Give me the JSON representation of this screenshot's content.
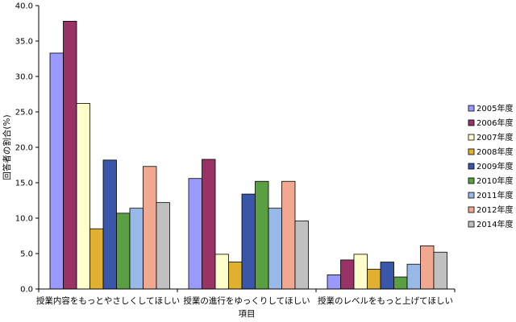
{
  "chart_data": {
    "type": "bar",
    "title": "",
    "xlabel": "項目",
    "ylabel": "回答者の割合(%)",
    "ylim": [
      0,
      40
    ],
    "ytick_step": 5,
    "y_tick_labels": [
      "0.0",
      "5.0",
      "10.0",
      "15.0",
      "20.0",
      "25.0",
      "30.0",
      "35.0",
      "40.0"
    ],
    "grid": false,
    "legend_position": "right",
    "categories": [
      "授業内容をもっとやさしくしてほしい",
      "授業の進行をゆっくりしてほしい",
      "授業のレベルをもっと上げてほしい"
    ],
    "series": [
      {
        "name": "2005年度",
        "color": "#9999ff",
        "values": [
          33.3,
          15.6,
          2.0
        ]
      },
      {
        "name": "2006年度",
        "color": "#993366",
        "values": [
          37.8,
          18.3,
          4.1
        ]
      },
      {
        "name": "2007年度",
        "color": "#ffffcc",
        "values": [
          26.2,
          4.9,
          4.9
        ]
      },
      {
        "name": "2008年度",
        "color": "#e0b030",
        "values": [
          8.5,
          3.8,
          2.8
        ]
      },
      {
        "name": "2009年度",
        "color": "#3a56a8",
        "values": [
          18.2,
          13.4,
          3.8
        ]
      },
      {
        "name": "2010年度",
        "color": "#5aa042",
        "values": [
          10.7,
          15.2,
          1.7
        ]
      },
      {
        "name": "2011年度",
        "color": "#98b8e8",
        "values": [
          11.4,
          11.4,
          3.5
        ]
      },
      {
        "name": "2012年度",
        "color": "#f0a890",
        "values": [
          17.3,
          15.2,
          6.1
        ]
      },
      {
        "name": "2014年度",
        "color": "#c0c0c0",
        "values": [
          12.2,
          9.6,
          5.2
        ]
      }
    ]
  }
}
